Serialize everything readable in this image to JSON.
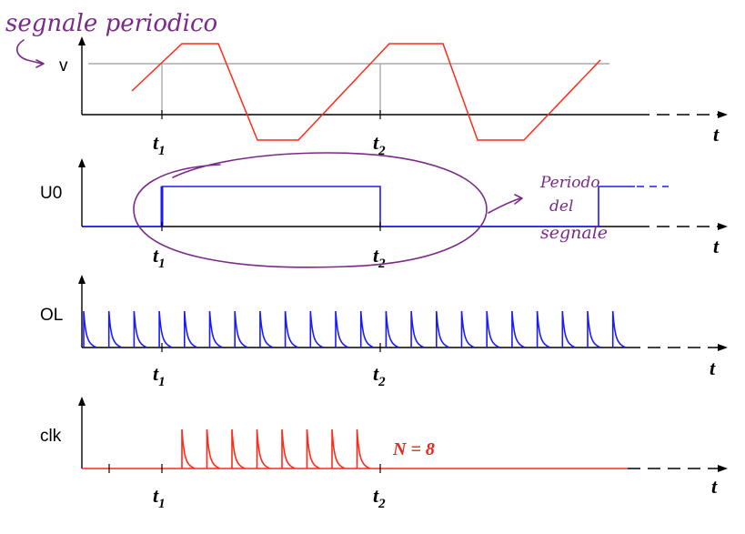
{
  "annotations": {
    "title": "segnale periodico",
    "note_lines": [
      "Periodo",
      "del",
      "segnale"
    ]
  },
  "panels": [
    {
      "id": "signal",
      "ylabel": "v",
      "t1_main": "t",
      "t1_sub": "1",
      "t2_main": "t",
      "t2_sub": "2",
      "xlabel": "t"
    },
    {
      "id": "u0",
      "ylabel": "U0",
      "t1_main": "t",
      "t1_sub": "1",
      "t2_main": "t",
      "t2_sub": "2",
      "xlabel": "t"
    },
    {
      "id": "ol",
      "ylabel": "OL",
      "t1_main": "t",
      "t1_sub": "1",
      "t2_main": "t",
      "t2_sub": "2",
      "xlabel": "t"
    },
    {
      "id": "clk",
      "ylabel": "clk",
      "t1_main": "t",
      "t1_sub": "1",
      "t2_main": "t",
      "t2_sub": "2",
      "xlabel": "t"
    }
  ],
  "clk_count_label": "N = 8",
  "colors": {
    "signal": "#ff2a1a",
    "u0": "#1a1aff",
    "ol": "#1a1aff",
    "clk": "#ff2a1a",
    "reference_line": "#aaaaaa",
    "handwriting": "#7a2a8a",
    "axes": "#000000"
  },
  "series": {
    "ol_pulse_count": 22,
    "clk_pulse_count": 8
  }
}
